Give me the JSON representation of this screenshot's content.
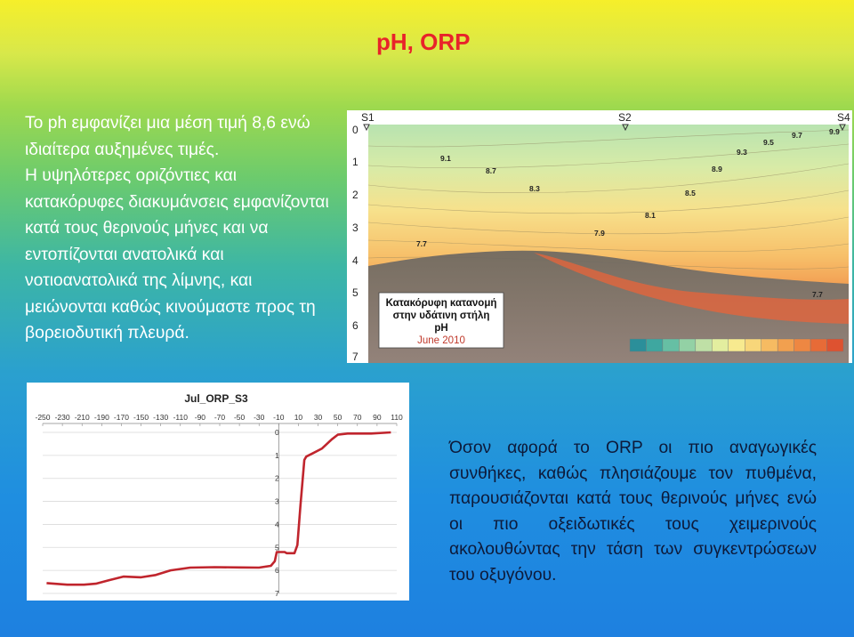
{
  "slide": {
    "title": "pH, ORP",
    "left_paragraphs": [
      "Το ph εμφανίζει μια μέση τιμή 8,6 ενώ ιδιαίτερα αυξημένες τιμές.",
      "Η υψηλότερες οριζόντιες και κατακόρυφες διακυμάνσεις εμφανίζονται κατά τους θερινούς μήνες και να εντοπίζονται ανατολικά και νοτιοανατολικά της λίμνης, και μειώνονται καθώς κινούμαστε προς τη βορειοδυτική πλευρά."
    ],
    "right_paragraph": "Όσον αφορά το ORP οι πιο αναγωγικές συνθήκες, καθώς πλησιάζουμε τον πυθμένα, παρουσιάζονται κατά τους θερινούς μήνες ενώ οι πιο οξειδωτικές τους χειμερινούς ακολουθώντας την τάση των συγκεντρώσεων του οξυγόνου."
  },
  "ph_figure": {
    "stations": [
      "S1",
      "S2",
      "S4"
    ],
    "depth_ticks": [
      "0",
      "1",
      "2",
      "3",
      "4",
      "5",
      "6",
      "7"
    ],
    "contour_labels": [
      "9.1",
      "8.7",
      "8.3",
      "7.7",
      "7.9",
      "8.1",
      "8.5",
      "8.9",
      "9.3",
      "9.5",
      "9.7",
      "9.9",
      "7.7"
    ],
    "caption_line1": "Κατακόρυφη κατανομή",
    "caption_line2": "στην υδάτινη στήλη",
    "caption_line3": "pH",
    "caption_date": "June 2010",
    "legend_colors": [
      "#2b8f9a",
      "#3ea7a0",
      "#66bfa4",
      "#93d1a5",
      "#bfe0a6",
      "#e3ee9f",
      "#f7ea8f",
      "#f8d67a",
      "#f6bb62",
      "#f2a04f",
      "#ee8742",
      "#e76b37",
      "#de5230"
    ],
    "colors": {
      "top": "#b8e3b0",
      "mid": "#f7e18c",
      "bottom": "#e9643a",
      "sediment": "#77726d"
    }
  },
  "chart_data": {
    "type": "line",
    "title": "Jul_ORP_S3",
    "x_ticks": [
      "-250",
      "-230",
      "-210",
      "-190",
      "-170",
      "-150",
      "-130",
      "-110",
      "-90",
      "-70",
      "-50",
      "-30",
      "-10",
      "10",
      "30",
      "50",
      "70",
      "90",
      "110"
    ],
    "y_ticks": [
      "0",
      "1",
      "2",
      "3",
      "4",
      "5",
      "6",
      "7"
    ],
    "xlim": [
      -250,
      110
    ],
    "ylim": [
      0,
      7
    ],
    "series": [
      {
        "color": "#c0252d",
        "points": [
          [
            -246,
            6.55
          ],
          [
            -225,
            6.62
          ],
          [
            -208,
            6.62
          ],
          [
            -196,
            6.58
          ],
          [
            -182,
            6.42
          ],
          [
            -168,
            6.27
          ],
          [
            -150,
            6.3
          ],
          [
            -135,
            6.2
          ],
          [
            -120,
            6.0
          ],
          [
            -100,
            5.88
          ],
          [
            -75,
            5.86
          ],
          [
            -50,
            5.87
          ],
          [
            -30,
            5.88
          ],
          [
            -18,
            5.8
          ],
          [
            -14,
            5.6
          ],
          [
            -12,
            5.2
          ],
          [
            -4,
            5.2
          ],
          [
            -2,
            5.25
          ],
          [
            6,
            5.25
          ],
          [
            9,
            4.9
          ],
          [
            12,
            3.2
          ],
          [
            16,
            1.2
          ],
          [
            18,
            1.05
          ],
          [
            25,
            0.9
          ],
          [
            34,
            0.7
          ],
          [
            44,
            0.3
          ],
          [
            50,
            0.1
          ],
          [
            60,
            0.05
          ],
          [
            84,
            0.05
          ],
          [
            104,
            0.0
          ]
        ]
      }
    ]
  }
}
